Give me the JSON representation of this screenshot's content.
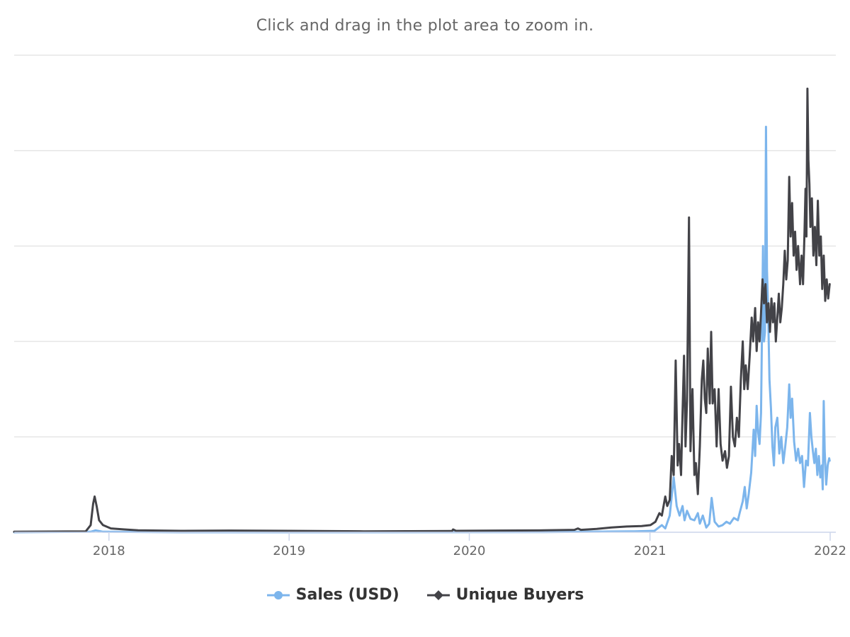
{
  "subtitle": "Click and drag in the plot area to zoom in.",
  "chart_data": {
    "type": "line",
    "subtitle": "Click and drag in the plot area to zoom in.",
    "x_axis": {
      "type": "datetime",
      "range": [
        "2017-06-23",
        "2022-01-01"
      ],
      "tick_labels": [
        "2018",
        "2019",
        "2020",
        "2021",
        "2022"
      ]
    },
    "y_axis": {
      "labels_shown": false,
      "range": [
        0,
        100
      ],
      "gridlines": 5,
      "note_units": "relative (no y tick labels printed)"
    },
    "grid": true,
    "legend_position": "bottom-center",
    "series": [
      {
        "name": "Sales (USD)",
        "color": "#7cb5ec",
        "marker": "circle",
        "points": [
          [
            "2017-06-23",
            0.0
          ],
          [
            "2017-11-25",
            0.1
          ],
          [
            "2017-12-05",
            0.4
          ],
          [
            "2017-12-20",
            0.1
          ],
          [
            "2018-06-01",
            0.0
          ],
          [
            "2019-06-01",
            0.0
          ],
          [
            "2020-06-01",
            0.05
          ],
          [
            "2020-12-01",
            0.2
          ],
          [
            "2021-01-10",
            0.3
          ],
          [
            "2021-01-25",
            1.5
          ],
          [
            "2021-02-01",
            0.8
          ],
          [
            "2021-02-10",
            3.5
          ],
          [
            "2021-02-18",
            11.5
          ],
          [
            "2021-02-24",
            5.5
          ],
          [
            "2021-03-02",
            3.5
          ],
          [
            "2021-03-08",
            5.5
          ],
          [
            "2021-03-12",
            2.5
          ],
          [
            "2021-03-17",
            4.5
          ],
          [
            "2021-03-24",
            2.8
          ],
          [
            "2021-04-01",
            2.5
          ],
          [
            "2021-04-08",
            4.0
          ],
          [
            "2021-04-12",
            1.8
          ],
          [
            "2021-04-18",
            3.5
          ],
          [
            "2021-04-25",
            1.0
          ],
          [
            "2021-05-01",
            1.8
          ],
          [
            "2021-05-06",
            7.2
          ],
          [
            "2021-05-12",
            2.2
          ],
          [
            "2021-05-20",
            1.2
          ],
          [
            "2021-05-28",
            1.5
          ],
          [
            "2021-06-05",
            2.2
          ],
          [
            "2021-06-12",
            1.8
          ],
          [
            "2021-06-20",
            3.0
          ],
          [
            "2021-06-28",
            2.5
          ],
          [
            "2021-07-02",
            4.2
          ],
          [
            "2021-07-08",
            6.5
          ],
          [
            "2021-07-12",
            9.5
          ],
          [
            "2021-07-16",
            5.0
          ],
          [
            "2021-07-20",
            8.0
          ],
          [
            "2021-07-25",
            12.5
          ],
          [
            "2021-07-30",
            21.5
          ],
          [
            "2021-08-02",
            16.0
          ],
          [
            "2021-08-05",
            26.5
          ],
          [
            "2021-08-08",
            21.0
          ],
          [
            "2021-08-11",
            18.5
          ],
          [
            "2021-08-14",
            25.0
          ],
          [
            "2021-08-18",
            60.0
          ],
          [
            "2021-08-20",
            40.0
          ],
          [
            "2021-08-22",
            42.0
          ],
          [
            "2021-08-24",
            85.0
          ],
          [
            "2021-08-26",
            55.0
          ],
          [
            "2021-08-28",
            48.0
          ],
          [
            "2021-08-31",
            32.0
          ],
          [
            "2021-09-03",
            26.0
          ],
          [
            "2021-09-06",
            18.0
          ],
          [
            "2021-09-09",
            14.0
          ],
          [
            "2021-09-12",
            22.0
          ],
          [
            "2021-09-16",
            24.0
          ],
          [
            "2021-09-20",
            16.5
          ],
          [
            "2021-09-24",
            20.0
          ],
          [
            "2021-09-28",
            14.5
          ],
          [
            "2021-10-02",
            18.0
          ],
          [
            "2021-10-06",
            22.0
          ],
          [
            "2021-10-10",
            31.0
          ],
          [
            "2021-10-13",
            24.0
          ],
          [
            "2021-10-16",
            28.0
          ],
          [
            "2021-10-20",
            19.0
          ],
          [
            "2021-10-24",
            15.0
          ],
          [
            "2021-10-28",
            17.5
          ],
          [
            "2021-11-01",
            14.5
          ],
          [
            "2021-11-05",
            16.0
          ],
          [
            "2021-11-09",
            9.5
          ],
          [
            "2021-11-13",
            15.0
          ],
          [
            "2021-11-17",
            14.0
          ],
          [
            "2021-11-21",
            25.0
          ],
          [
            "2021-11-24",
            20.0
          ],
          [
            "2021-11-27",
            17.0
          ],
          [
            "2021-11-30",
            14.5
          ],
          [
            "2021-12-03",
            17.5
          ],
          [
            "2021-12-06",
            12.0
          ],
          [
            "2021-12-09",
            16.0
          ],
          [
            "2021-12-12",
            11.5
          ],
          [
            "2021-12-15",
            14.0
          ],
          [
            "2021-12-17",
            9.0
          ],
          [
            "2021-12-19",
            27.5
          ],
          [
            "2021-12-21",
            17.0
          ],
          [
            "2021-12-24",
            10.0
          ],
          [
            "2021-12-27",
            14.0
          ],
          [
            "2021-12-30",
            15.5
          ],
          [
            "2021-12-31",
            15.0
          ]
        ]
      },
      {
        "name": "Unique Buyers",
        "color": "#434348",
        "marker": "diamond",
        "points": [
          [
            "2017-06-23",
            0.1
          ],
          [
            "2017-11-15",
            0.2
          ],
          [
            "2017-11-25",
            1.5
          ],
          [
            "2017-11-30",
            6.0
          ],
          [
            "2017-12-03",
            7.5
          ],
          [
            "2017-12-07",
            5.5
          ],
          [
            "2017-12-12",
            2.5
          ],
          [
            "2017-12-20",
            1.5
          ],
          [
            "2018-01-05",
            0.8
          ],
          [
            "2018-02-01",
            0.6
          ],
          [
            "2018-03-01",
            0.4
          ],
          [
            "2018-06-01",
            0.3
          ],
          [
            "2018-09-01",
            0.35
          ],
          [
            "2019-01-01",
            0.3
          ],
          [
            "2019-06-01",
            0.2
          ],
          [
            "2019-11-27",
            0.25
          ],
          [
            "2019-11-29",
            0.6
          ],
          [
            "2019-12-05",
            0.3
          ],
          [
            "2020-03-01",
            0.35
          ],
          [
            "2020-06-01",
            0.4
          ],
          [
            "2020-08-01",
            0.5
          ],
          [
            "2020-08-08",
            0.8
          ],
          [
            "2020-08-14",
            0.5
          ],
          [
            "2020-09-15",
            0.7
          ],
          [
            "2020-10-15",
            1.0
          ],
          [
            "2020-11-15",
            1.2
          ],
          [
            "2020-12-15",
            1.3
          ],
          [
            "2021-01-02",
            1.5
          ],
          [
            "2021-01-12",
            2.2
          ],
          [
            "2021-01-20",
            4.0
          ],
          [
            "2021-01-25",
            3.5
          ],
          [
            "2021-02-01",
            7.5
          ],
          [
            "2021-02-05",
            5.5
          ],
          [
            "2021-02-10",
            6.8
          ],
          [
            "2021-02-14",
            16.0
          ],
          [
            "2021-02-18",
            12.0
          ],
          [
            "2021-02-22",
            36.0
          ],
          [
            "2021-02-26",
            14.0
          ],
          [
            "2021-03-01",
            18.5
          ],
          [
            "2021-03-05",
            12.0
          ],
          [
            "2021-03-08",
            25.0
          ],
          [
            "2021-03-11",
            37.0
          ],
          [
            "2021-03-14",
            18.0
          ],
          [
            "2021-03-17",
            27.5
          ],
          [
            "2021-03-21",
            66.0
          ],
          [
            "2021-03-24",
            17.0
          ],
          [
            "2021-03-28",
            30.0
          ],
          [
            "2021-04-01",
            12.0
          ],
          [
            "2021-04-04",
            14.5
          ],
          [
            "2021-04-08",
            8.0
          ],
          [
            "2021-04-12",
            18.0
          ],
          [
            "2021-04-16",
            32.0
          ],
          [
            "2021-04-19",
            36.0
          ],
          [
            "2021-04-22",
            28.0
          ],
          [
            "2021-04-25",
            25.0
          ],
          [
            "2021-04-28",
            38.5
          ],
          [
            "2021-05-02",
            27.0
          ],
          [
            "2021-05-05",
            42.0
          ],
          [
            "2021-05-08",
            27.0
          ],
          [
            "2021-05-12",
            30.0
          ],
          [
            "2021-05-16",
            18.0
          ],
          [
            "2021-05-20",
            30.0
          ],
          [
            "2021-05-24",
            18.5
          ],
          [
            "2021-05-28",
            15.0
          ],
          [
            "2021-06-02",
            17.0
          ],
          [
            "2021-06-06",
            13.5
          ],
          [
            "2021-06-10",
            16.0
          ],
          [
            "2021-06-14",
            30.5
          ],
          [
            "2021-06-18",
            20.0
          ],
          [
            "2021-06-22",
            18.0
          ],
          [
            "2021-06-26",
            24.0
          ],
          [
            "2021-06-30",
            20.0
          ],
          [
            "2021-07-04",
            32.0
          ],
          [
            "2021-07-08",
            40.0
          ],
          [
            "2021-07-11",
            30.0
          ],
          [
            "2021-07-14",
            35.0
          ],
          [
            "2021-07-18",
            30.0
          ],
          [
            "2021-07-22",
            37.0
          ],
          [
            "2021-07-26",
            45.0
          ],
          [
            "2021-07-29",
            40.0
          ],
          [
            "2021-08-02",
            47.0
          ],
          [
            "2021-08-05",
            38.0
          ],
          [
            "2021-08-08",
            44.0
          ],
          [
            "2021-08-11",
            40.0
          ],
          [
            "2021-08-14",
            46.0
          ],
          [
            "2021-08-17",
            53.0
          ],
          [
            "2021-08-20",
            48.0
          ],
          [
            "2021-08-23",
            52.0
          ],
          [
            "2021-08-26",
            44.0
          ],
          [
            "2021-08-29",
            48.0
          ],
          [
            "2021-09-01",
            42.0
          ],
          [
            "2021-09-04",
            49.0
          ],
          [
            "2021-09-07",
            44.0
          ],
          [
            "2021-09-10",
            48.0
          ],
          [
            "2021-09-13",
            40.0
          ],
          [
            "2021-09-16",
            45.0
          ],
          [
            "2021-09-19",
            50.0
          ],
          [
            "2021-09-22",
            44.0
          ],
          [
            "2021-09-25",
            47.0
          ],
          [
            "2021-09-28",
            52.0
          ],
          [
            "2021-10-01",
            59.0
          ],
          [
            "2021-10-04",
            53.0
          ],
          [
            "2021-10-07",
            57.0
          ],
          [
            "2021-10-10",
            74.5
          ],
          [
            "2021-10-13",
            62.0
          ],
          [
            "2021-10-16",
            69.0
          ],
          [
            "2021-10-19",
            58.0
          ],
          [
            "2021-10-22",
            63.0
          ],
          [
            "2021-10-25",
            55.0
          ],
          [
            "2021-10-28",
            60.0
          ],
          [
            "2021-11-01",
            52.0
          ],
          [
            "2021-11-04",
            58.0
          ],
          [
            "2021-11-07",
            52.0
          ],
          [
            "2021-11-10",
            63.0
          ],
          [
            "2021-11-12",
            72.0
          ],
          [
            "2021-11-14",
            62.0
          ],
          [
            "2021-11-16",
            93.0
          ],
          [
            "2021-11-18",
            78.0
          ],
          [
            "2021-11-20",
            73.0
          ],
          [
            "2021-11-22",
            64.0
          ],
          [
            "2021-11-25",
            70.0
          ],
          [
            "2021-11-28",
            58.0
          ],
          [
            "2021-12-01",
            64.0
          ],
          [
            "2021-12-04",
            56.0
          ],
          [
            "2021-12-07",
            69.5
          ],
          [
            "2021-12-10",
            58.0
          ],
          [
            "2021-12-13",
            62.0
          ],
          [
            "2021-12-16",
            51.0
          ],
          [
            "2021-12-19",
            58.0
          ],
          [
            "2021-12-22",
            48.5
          ],
          [
            "2021-12-25",
            53.0
          ],
          [
            "2021-12-28",
            49.0
          ],
          [
            "2021-12-31",
            52.0
          ]
        ]
      }
    ]
  }
}
